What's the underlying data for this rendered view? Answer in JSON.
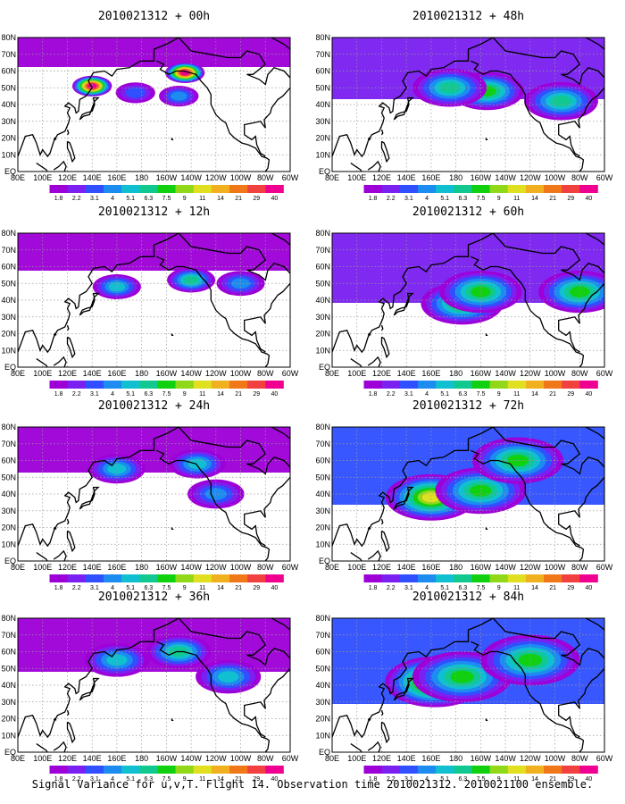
{
  "colors": {
    "levels": [
      "#9e00d8",
      "#7a20f0",
      "#3050ff",
      "#1c8cf0",
      "#10c0d0",
      "#10c890",
      "#10d010",
      "#90d818",
      "#e0e020",
      "#f0b020",
      "#f07818",
      "#f04040",
      "#f00090"
    ],
    "land_outline": "#000000",
    "grid": "#9a9a9a"
  },
  "figure": {
    "caption": "Signal Variance for u,v,T. Flight 14. Observation time 2010021312. 2010021100 ensemble.",
    "xticks": [
      "80E",
      "100E",
      "120E",
      "140E",
      "160E",
      "180",
      "160W",
      "140W",
      "120W",
      "100W",
      "80W",
      "60W"
    ],
    "yticks": [
      "EQ",
      "10N",
      "20N",
      "30N",
      "40N",
      "50N",
      "60N",
      "70N",
      "80N"
    ],
    "colorbar_labels": [
      "1.8",
      "2.2",
      "3.1",
      "4",
      "5.1",
      "6.3",
      "7.5",
      "9",
      "11",
      "14",
      "21",
      "29",
      "40"
    ]
  },
  "chart_data": [
    {
      "type": "heatmap",
      "title": "2010021312 + 00h",
      "lead_hours": 0,
      "xlim": [
        "80E",
        "60W"
      ],
      "ylim": [
        "EQ",
        "80N"
      ],
      "features": [
        {
          "lon": 140,
          "lat": 51,
          "peak_level": 12,
          "note": "max"
        },
        {
          "lon": -145,
          "lat": 59,
          "peak_level": 12
        },
        {
          "lon": -150,
          "lat": 45,
          "peak_level": 3
        },
        {
          "lon": 175,
          "lat": 47,
          "peak_level": 2
        }
      ]
    },
    {
      "type": "heatmap",
      "title": "2010021312 + 12h",
      "lead_hours": 12,
      "xlim": [
        "80E",
        "60W"
      ],
      "ylim": [
        "EQ",
        "80N"
      ],
      "features": [
        {
          "lon": -140,
          "lat": 52,
          "peak_level": 5
        },
        {
          "lon": 160,
          "lat": 48,
          "peak_level": 4
        },
        {
          "lon": -100,
          "lat": 50,
          "peak_level": 3
        }
      ]
    },
    {
      "type": "heatmap",
      "title": "2010021312 + 24h",
      "lead_hours": 24,
      "xlim": [
        "80E",
        "60W"
      ],
      "ylim": [
        "EQ",
        "80N"
      ],
      "features": [
        {
          "lon": 160,
          "lat": 55,
          "peak_level": 4
        },
        {
          "lon": -135,
          "lat": 58,
          "peak_level": 4
        },
        {
          "lon": -120,
          "lat": 40,
          "peak_level": 3
        }
      ]
    },
    {
      "type": "heatmap",
      "title": "2010021312 + 36h",
      "lead_hours": 36,
      "xlim": [
        "80E",
        "60W"
      ],
      "ylim": [
        "EQ",
        "80N"
      ],
      "features": [
        {
          "lon": 160,
          "lat": 55,
          "peak_level": 4
        },
        {
          "lon": -150,
          "lat": 60,
          "peak_level": 5
        },
        {
          "lon": -110,
          "lat": 45,
          "peak_level": 4
        }
      ]
    },
    {
      "type": "heatmap",
      "title": "2010021312 + 48h",
      "lead_hours": 48,
      "xlim": [
        "80E",
        "60W"
      ],
      "ylim": [
        "EQ",
        "80N"
      ],
      "features": [
        {
          "lon": -155,
          "lat": 48,
          "peak_level": 6
        },
        {
          "lon": 175,
          "lat": 50,
          "peak_level": 5
        },
        {
          "lon": -95,
          "lat": 42,
          "peak_level": 5
        }
      ]
    },
    {
      "type": "heatmap",
      "title": "2010021312 + 60h",
      "lead_hours": 60,
      "xlim": [
        "80E",
        "60W"
      ],
      "ylim": [
        "EQ",
        "80N"
      ],
      "features": [
        {
          "lon": -175,
          "lat": 38,
          "peak_level": 6
        },
        {
          "lon": -160,
          "lat": 45,
          "peak_level": 6
        },
        {
          "lon": -80,
          "lat": 45,
          "peak_level": 6
        }
      ]
    },
    {
      "type": "heatmap",
      "title": "2010021312 + 72h",
      "lead_hours": 72,
      "xlim": [
        "80E",
        "60W"
      ],
      "ylim": [
        "EQ",
        "80N"
      ],
      "features": [
        {
          "lon": 160,
          "lat": 38,
          "peak_level": 8
        },
        {
          "lon": -160,
          "lat": 42,
          "peak_level": 6
        },
        {
          "lon": -130,
          "lat": 60,
          "peak_level": 6
        }
      ]
    },
    {
      "type": "heatmap",
      "title": "2010021312 + 84h",
      "lead_hours": 84,
      "xlim": [
        "80E",
        "60W"
      ],
      "ylim": [
        "EQ",
        "80N"
      ],
      "features": [
        {
          "lon": 163,
          "lat": 42,
          "peak_level": 9
        },
        {
          "lon": -175,
          "lat": 45,
          "peak_level": 6
        },
        {
          "lon": -120,
          "lat": 55,
          "peak_level": 6
        }
      ]
    }
  ]
}
